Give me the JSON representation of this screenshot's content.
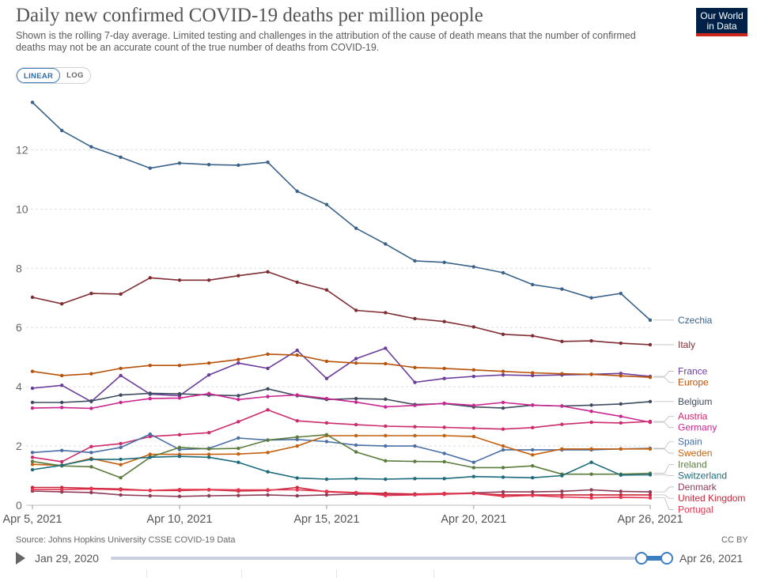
{
  "header": {
    "title": "Daily new confirmed COVID-19 deaths per million people",
    "subtitle": "Shown is the rolling 7-day average. Limited testing and challenges in the attribution of the cause of death means that the number of confirmed deaths may not be an accurate count of the true number of deaths from COVID-19.",
    "logo_line1": "Our World",
    "logo_line2": "in Data"
  },
  "scale_toggle": {
    "linear_label": "LINEAR",
    "log_label": "LOG",
    "selected": "LINEAR"
  },
  "footer": {
    "source": "Source: Johns Hopkins University CSSE COVID-19 Data",
    "license": "CC BY"
  },
  "timeline": {
    "start_label": "Jan 29, 2020",
    "end_label": "Apr 26, 2021",
    "play_icon": "play-icon"
  },
  "chart_data": {
    "type": "line",
    "title": "Daily new confirmed COVID-19 deaths per million people",
    "x": [
      "Apr 5",
      "Apr 6",
      "Apr 7",
      "Apr 8",
      "Apr 9",
      "Apr 10",
      "Apr 11",
      "Apr 12",
      "Apr 13",
      "Apr 14",
      "Apr 15",
      "Apr 16",
      "Apr 17",
      "Apr 18",
      "Apr 19",
      "Apr 20",
      "Apr 21",
      "Apr 22",
      "Apr 23",
      "Apr 24",
      "Apr 25",
      "Apr 26"
    ],
    "x_tick_labels": [
      "Apr 5, 2021",
      "Apr 10, 2021",
      "Apr 15, 2021",
      "Apr 20, 2021",
      "Apr 26, 2021"
    ],
    "x_tick_index": [
      0,
      5,
      10,
      15,
      21
    ],
    "ylim": [
      0,
      13.8
    ],
    "y_ticks": [
      0,
      2,
      4,
      6,
      8,
      10,
      12
    ],
    "grid": "horizontal dashed",
    "legend": "right, labels at line ends",
    "series": [
      {
        "name": "Czechia",
        "color": "#3a6389",
        "values": [
          13.6,
          12.65,
          12.1,
          11.75,
          11.38,
          11.55,
          11.5,
          11.48,
          11.58,
          10.6,
          10.15,
          9.35,
          8.82,
          8.25,
          8.2,
          8.05,
          7.85,
          7.45,
          7.3,
          7.0,
          7.15,
          6.25
        ]
      },
      {
        "name": "Italy",
        "color": "#7f2d32",
        "values": [
          7.02,
          6.8,
          7.15,
          7.13,
          7.68,
          7.6,
          7.6,
          7.75,
          7.88,
          7.53,
          7.27,
          6.58,
          6.5,
          6.3,
          6.2,
          6.02,
          5.77,
          5.72,
          5.53,
          5.55,
          5.47,
          5.42
        ]
      },
      {
        "name": "France",
        "color": "#6b3d9a",
        "values": [
          3.95,
          4.05,
          3.5,
          4.38,
          3.75,
          3.7,
          4.4,
          4.8,
          4.62,
          5.23,
          4.28,
          4.95,
          5.3,
          4.15,
          4.28,
          4.35,
          4.4,
          4.38,
          4.4,
          4.42,
          4.45,
          4.35
        ]
      },
      {
        "name": "Europe",
        "color": "#b8520a",
        "values": [
          4.52,
          4.38,
          4.44,
          4.62,
          4.72,
          4.72,
          4.8,
          4.92,
          5.1,
          5.07,
          4.86,
          4.8,
          4.78,
          4.65,
          4.62,
          4.57,
          4.52,
          4.47,
          4.44,
          4.42,
          4.37,
          4.32
        ]
      },
      {
        "name": "Belgium",
        "color": "#3e4b5e",
        "values": [
          3.47,
          3.47,
          3.52,
          3.72,
          3.78,
          3.76,
          3.72,
          3.7,
          3.93,
          3.7,
          3.57,
          3.6,
          3.58,
          3.4,
          3.43,
          3.32,
          3.28,
          3.38,
          3.35,
          3.38,
          3.42,
          3.5
        ]
      },
      {
        "name": "Germany",
        "color": "#c9258e",
        "values": [
          3.28,
          3.3,
          3.27,
          3.47,
          3.6,
          3.62,
          3.77,
          3.57,
          3.67,
          3.72,
          3.6,
          3.48,
          3.32,
          3.37,
          3.44,
          3.37,
          3.47,
          3.38,
          3.35,
          3.17,
          3.0,
          2.8
        ]
      },
      {
        "name": "Austria",
        "color": "#cc2b6e",
        "values": [
          1.62,
          1.47,
          1.98,
          2.08,
          2.32,
          2.38,
          2.45,
          2.82,
          3.22,
          2.85,
          2.78,
          2.72,
          2.67,
          2.65,
          2.63,
          2.6,
          2.57,
          2.62,
          2.73,
          2.8,
          2.78,
          2.83
        ]
      },
      {
        "name": "Spain",
        "color": "#4a6fa5",
        "values": [
          1.78,
          1.85,
          1.78,
          1.95,
          2.4,
          1.88,
          1.92,
          2.27,
          2.2,
          2.22,
          2.15,
          2.03,
          2.0,
          2.0,
          1.75,
          1.45,
          1.87,
          1.87,
          1.87,
          1.87,
          1.9,
          1.92
        ]
      },
      {
        "name": "Sweden",
        "color": "#c4610f",
        "values": [
          1.38,
          1.35,
          1.58,
          1.37,
          1.72,
          1.72,
          1.72,
          1.73,
          1.78,
          2.0,
          2.35,
          2.35,
          2.35,
          2.35,
          2.35,
          2.32,
          2.0,
          1.7,
          1.9,
          1.9,
          1.9,
          1.9
        ]
      },
      {
        "name": "Ireland",
        "color": "#5c7c3e",
        "values": [
          1.48,
          1.33,
          1.3,
          0.93,
          1.62,
          1.95,
          1.9,
          1.92,
          2.2,
          2.3,
          2.38,
          1.8,
          1.5,
          1.48,
          1.47,
          1.27,
          1.27,
          1.33,
          1.05,
          1.05,
          1.05,
          1.08
        ]
      },
      {
        "name": "Switzerland",
        "color": "#1c6b7a",
        "values": [
          1.2,
          1.35,
          1.55,
          1.55,
          1.62,
          1.65,
          1.62,
          1.45,
          1.13,
          0.92,
          0.88,
          0.9,
          0.88,
          0.9,
          0.9,
          0.97,
          0.95,
          0.93,
          1.0,
          1.45,
          1.02,
          1.03
        ]
      },
      {
        "name": "Denmark",
        "color": "#8e3a5a",
        "values": [
          0.48,
          0.45,
          0.43,
          0.35,
          0.32,
          0.3,
          0.32,
          0.33,
          0.35,
          0.32,
          0.35,
          0.38,
          0.38,
          0.38,
          0.38,
          0.42,
          0.45,
          0.45,
          0.47,
          0.52,
          0.47,
          0.45
        ]
      },
      {
        "name": "United Kingdom",
        "color": "#c7243a",
        "values": [
          0.6,
          0.6,
          0.57,
          0.55,
          0.5,
          0.5,
          0.52,
          0.48,
          0.5,
          0.6,
          0.45,
          0.42,
          0.4,
          0.38,
          0.4,
          0.4,
          0.35,
          0.35,
          0.35,
          0.35,
          0.35,
          0.35
        ]
      },
      {
        "name": "Portugal",
        "color": "#e5344f",
        "values": [
          0.53,
          0.53,
          0.55,
          0.52,
          0.5,
          0.53,
          0.53,
          0.52,
          0.52,
          0.52,
          0.47,
          0.43,
          0.33,
          0.35,
          0.37,
          0.4,
          0.3,
          0.33,
          0.28,
          0.25,
          0.27,
          0.25
        ]
      }
    ]
  }
}
